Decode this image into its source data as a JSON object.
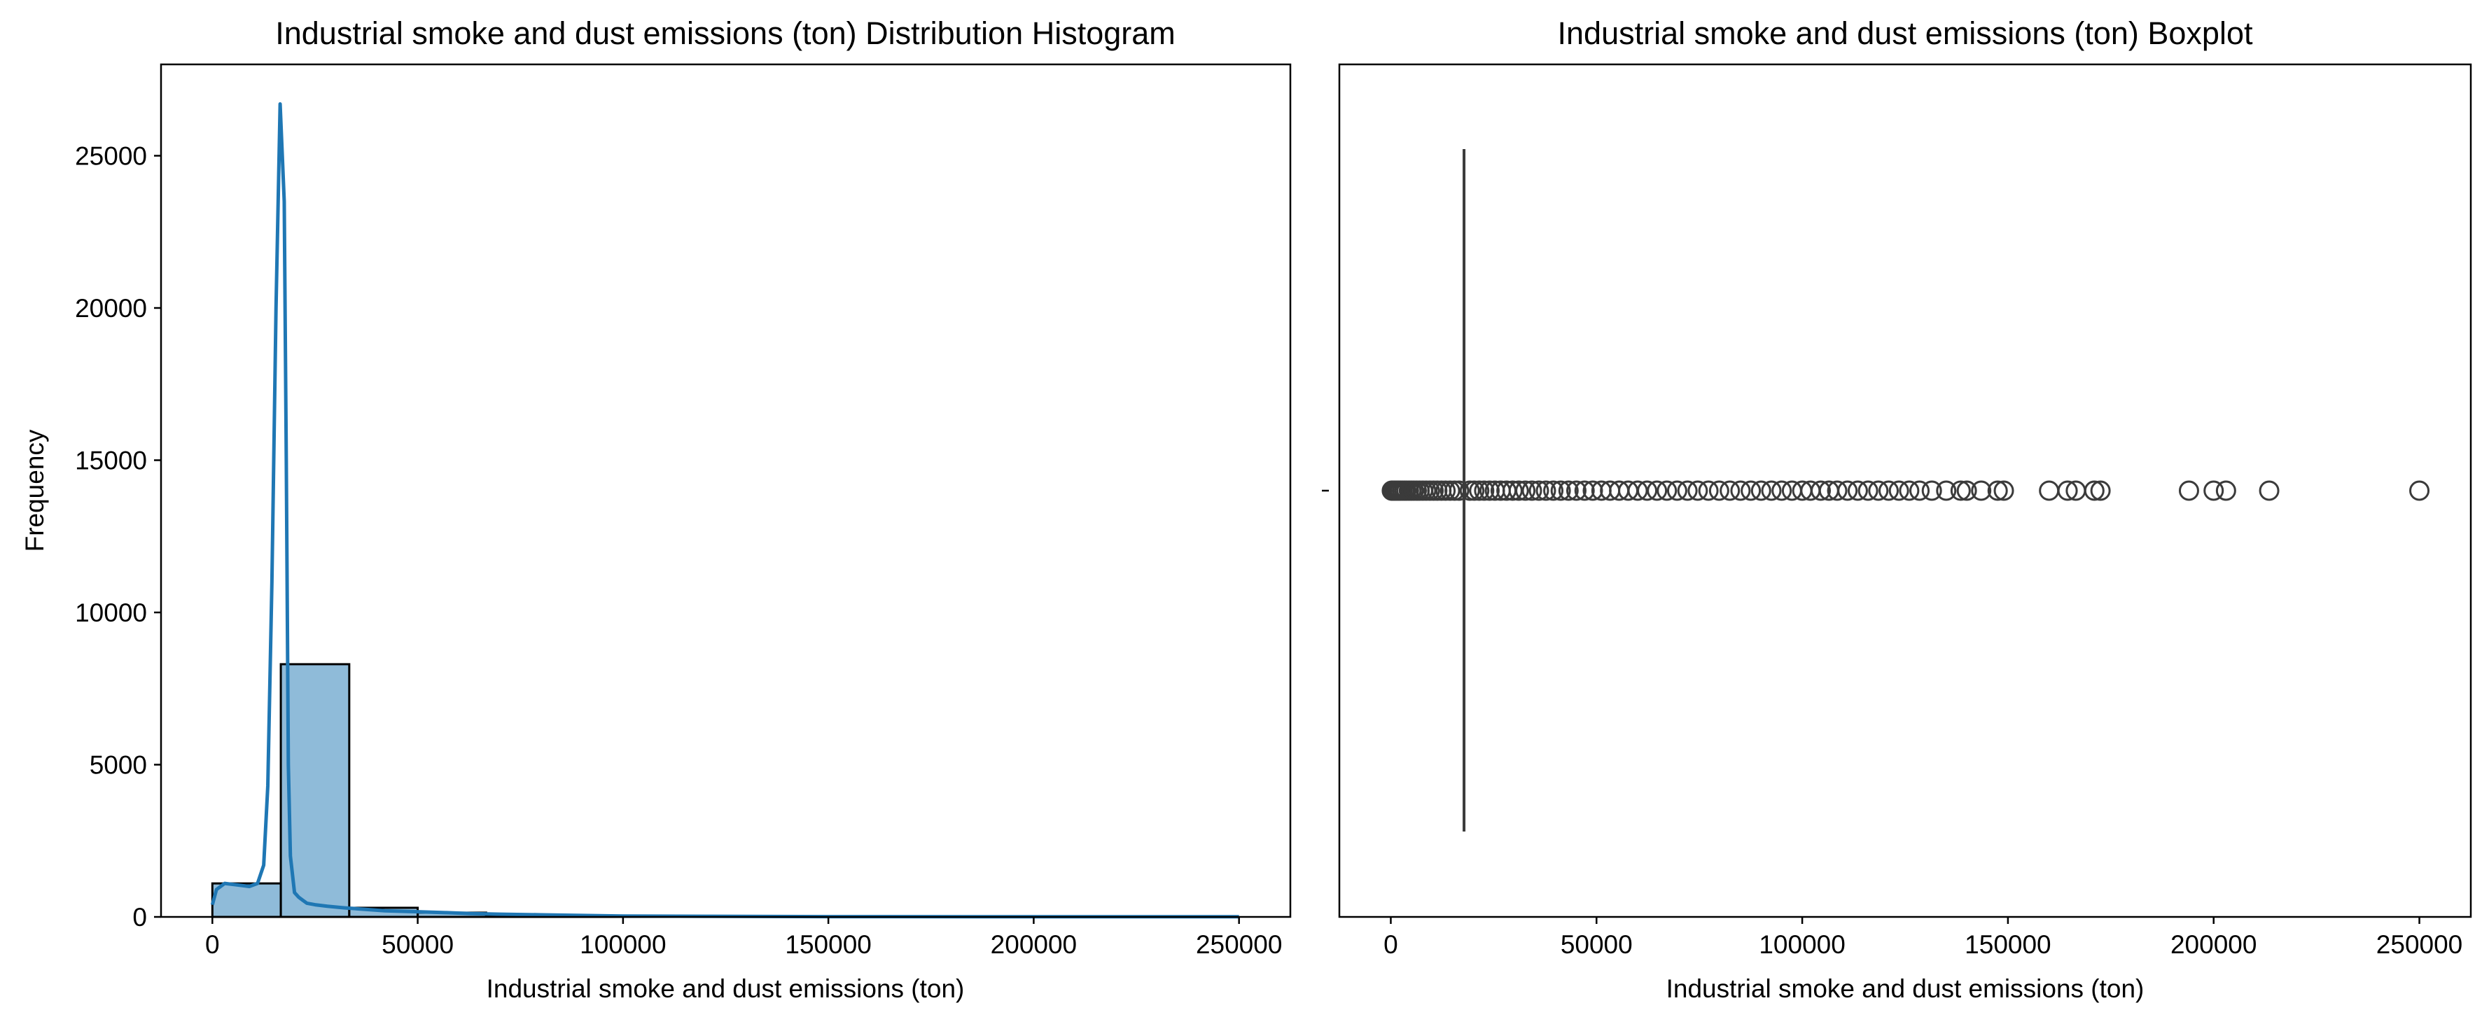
{
  "chart_data": [
    {
      "type": "histogram",
      "title": "Industrial smoke and dust emissions (ton) Distribution Histogram",
      "xlabel": "Industrial smoke and dust emissions (ton)",
      "ylabel": "Frequency",
      "xlim": [
        -12500,
        262500
      ],
      "ylim": [
        0,
        28000
      ],
      "xticks": [
        0,
        50000,
        100000,
        150000,
        200000,
        250000
      ],
      "yticks": [
        0,
        5000,
        10000,
        15000,
        20000,
        25000
      ],
      "bin_edges": [
        0,
        16667,
        33333,
        50000,
        66667,
        83333,
        100000,
        116667,
        133333,
        150000,
        166667,
        183333,
        200000,
        216667,
        233333,
        250000
      ],
      "counts": [
        1100,
        8300,
        300,
        140,
        45,
        25,
        15,
        10,
        8,
        6,
        3,
        2,
        1,
        1,
        0
      ],
      "bar_color": "#1f77b4",
      "bar_fill_opacity": 0.5,
      "kde_color": "#1f77b4",
      "kde": {
        "x": [
          0,
          1000,
          3000,
          6000,
          9000,
          11000,
          12500,
          13500,
          14500,
          15500,
          16500,
          17500,
          18000,
          18500,
          19000,
          20000,
          21000,
          22000,
          23000,
          25000,
          28000,
          32000,
          37000,
          42000,
          50000,
          57000,
          63000,
          70000,
          80000,
          90000,
          100000,
          120000,
          150000,
          200000,
          250000
        ],
        "y": [
          400,
          900,
          1100,
          1050,
          1000,
          1100,
          1700,
          4300,
          11000,
          20000,
          26700,
          23500,
          15000,
          5000,
          2000,
          800,
          650,
          550,
          450,
          400,
          350,
          300,
          250,
          200,
          170,
          140,
          110,
          90,
          70,
          50,
          30,
          20,
          10,
          5,
          5
        ]
      }
    },
    {
      "type": "boxplot",
      "title": "Industrial smoke and dust emissions (ton) Boxplot",
      "xlabel": "Industrial smoke and dust emissions (ton)",
      "xlim": [
        -12500,
        262500
      ],
      "xticks": [
        0,
        50000,
        100000,
        150000,
        200000,
        250000
      ],
      "median": 17800,
      "whisker_low": 17800,
      "whisker_high": 17800,
      "line_color": "#3b3b3b",
      "outliers": [
        250,
        500,
        800,
        1100,
        1500,
        1900,
        2300,
        2800,
        3300,
        3800,
        4400,
        5000,
        5600,
        6300,
        7000,
        7800,
        8600,
        9500,
        10400,
        11300,
        12300,
        13300,
        14400,
        15500,
        16600,
        19200,
        20300,
        21500,
        22700,
        24000,
        25300,
        26700,
        28100,
        29600,
        31100,
        32700,
        34300,
        36000,
        37700,
        39500,
        41300,
        43200,
        45100,
        47100,
        49100,
        51200,
        53300,
        55500,
        57700,
        60000,
        62300,
        64700,
        67100,
        69600,
        72100,
        74600,
        77200,
        79800,
        82400,
        85000,
        87500,
        90000,
        92500,
        95000,
        97500,
        100000,
        102000,
        104500,
        106500,
        108500,
        111000,
        113500,
        116000,
        118500,
        121000,
        123500,
        126000,
        128500,
        131500,
        135000,
        138500,
        140000,
        143500,
        147500,
        149000,
        160000,
        164500,
        166500,
        171000,
        172500,
        194000,
        200000,
        203000,
        213500,
        250000
      ]
    }
  ]
}
